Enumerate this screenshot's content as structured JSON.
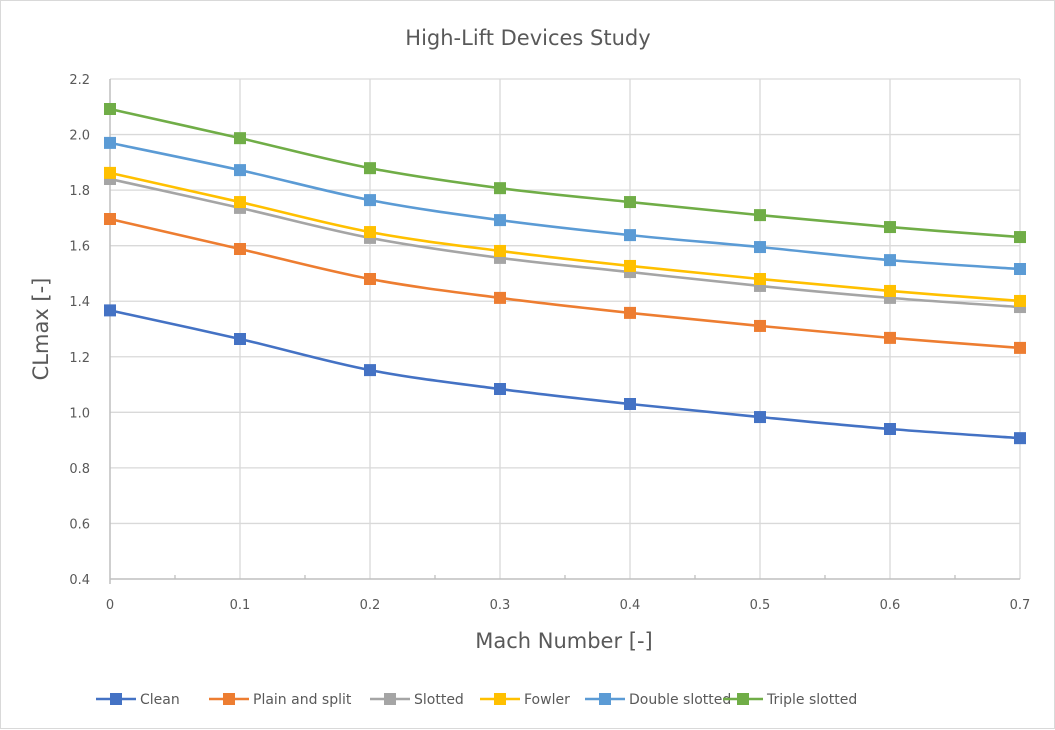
{
  "chart_data": {
    "type": "line",
    "title": "High-Lift Devices Study",
    "xlabel": "Mach Number [-]",
    "ylabel": "CLmax [-]",
    "x": [
      0,
      0.1,
      0.2,
      0.3,
      0.4,
      0.5,
      0.6,
      0.7
    ],
    "xlim": [
      0,
      0.7
    ],
    "ylim": [
      0.4,
      2.2
    ],
    "x_ticks": [
      "0",
      "0.1",
      "0.2",
      "0.3",
      "0.4",
      "0.5",
      "0.6",
      "0.7"
    ],
    "y_ticks": [
      "0.4",
      "0.6",
      "0.8",
      "1.0",
      "1.2",
      "1.4",
      "1.6",
      "1.8",
      "2.0",
      "2.2"
    ],
    "grid": true,
    "legend_position": "bottom",
    "marker": "square",
    "smoothed": true,
    "series": [
      {
        "name": "Clean",
        "color": "#4472C4",
        "values": [
          1.367,
          1.264,
          1.152,
          1.084,
          1.03,
          0.983,
          0.94,
          0.907
        ]
      },
      {
        "name": "Plain and split",
        "color": "#ED7D31",
        "values": [
          1.696,
          1.588,
          1.48,
          1.412,
          1.358,
          1.311,
          1.268,
          1.232
        ]
      },
      {
        "name": "Slotted",
        "color": "#A5A5A5",
        "values": [
          1.84,
          1.736,
          1.628,
          1.556,
          1.505,
          1.455,
          1.412,
          1.379
        ]
      },
      {
        "name": "Fowler",
        "color": "#FFC000",
        "values": [
          1.862,
          1.757,
          1.649,
          1.581,
          1.527,
          1.48,
          1.437,
          1.401
        ]
      },
      {
        "name": "Double slotted",
        "color": "#5B9BD5",
        "values": [
          1.97,
          1.872,
          1.764,
          1.692,
          1.638,
          1.595,
          1.548,
          1.516
        ]
      },
      {
        "name": "Triple slotted",
        "color": "#70AD47",
        "values": [
          2.092,
          1.987,
          1.879,
          1.807,
          1.757,
          1.71,
          1.667,
          1.631
        ]
      }
    ]
  }
}
